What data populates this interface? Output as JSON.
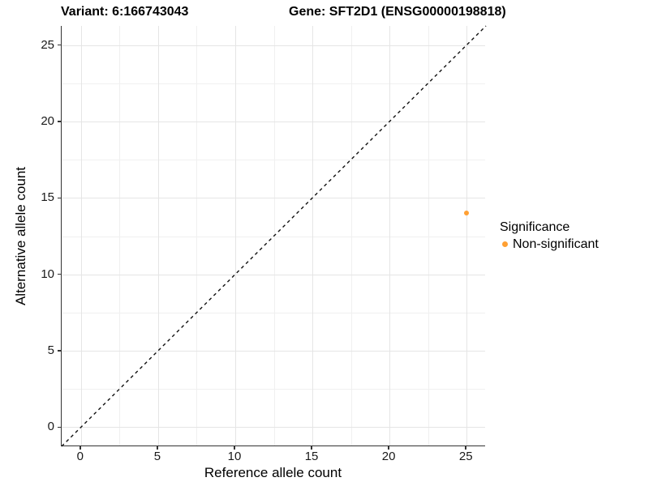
{
  "titles": {
    "variant": "Variant: 6:166743043",
    "gene": "Gene: SFT2D1 (ENSG00000198818)"
  },
  "legend": {
    "title": "Significance",
    "items": [
      {
        "label": "Non-significant",
        "color": "#FFA033"
      }
    ]
  },
  "colors": {
    "point": "#FFA033",
    "axis_line": "#333333",
    "grid_major": "#e5e5e5",
    "grid_minor": "#f0f0f0",
    "dashed_line": "#111111",
    "tick_text": "#1a1a1a"
  },
  "chart_data": {
    "type": "scatter",
    "title": "Variant: 6:166743043   Gene: SFT2D1 (ENSG00000198818)",
    "xlabel": "Reference allele count",
    "ylabel": "Alternative allele count",
    "xlim": [
      -1.25,
      26.25
    ],
    "ylim": [
      -1.25,
      26.25
    ],
    "x_ticks": [
      0,
      5,
      10,
      15,
      20,
      25
    ],
    "y_ticks": [
      0,
      5,
      10,
      15,
      20,
      25
    ],
    "x_minor_ticks": [
      2.5,
      7.5,
      12.5,
      17.5,
      22.5
    ],
    "y_minor_ticks": [
      2.5,
      7.5,
      12.5,
      17.5,
      22.5
    ],
    "grid": true,
    "legend_position": "right",
    "series": [
      {
        "name": "Non-significant",
        "color": "#FFA033",
        "points": [
          {
            "x": 25,
            "y": 14
          }
        ]
      }
    ],
    "reference_line": {
      "type": "abline",
      "equation": "y = x",
      "style": "dashed"
    }
  }
}
